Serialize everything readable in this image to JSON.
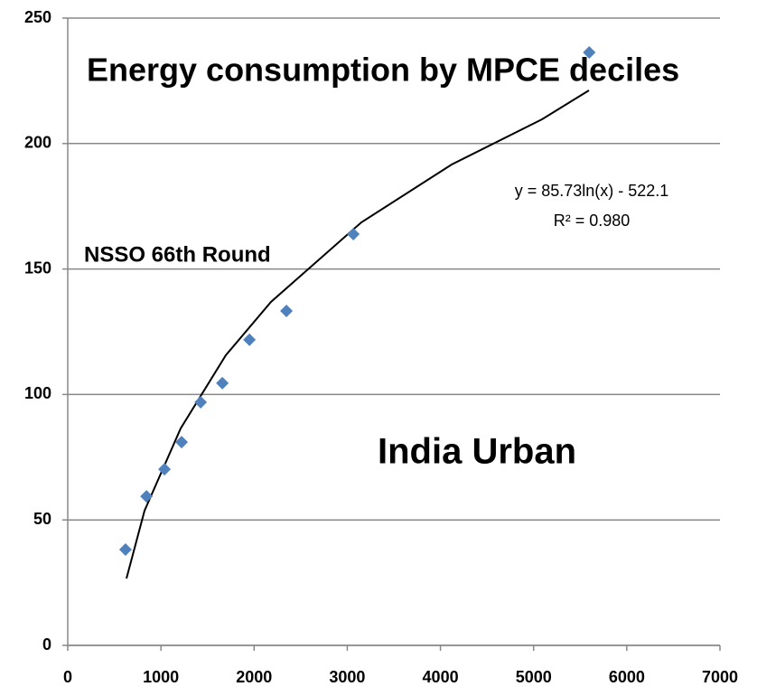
{
  "chart_data": {
    "type": "scatter",
    "title": "Energy consumption by MPCE deciles",
    "annotations": [
      "NSSO 66th Round",
      "India Urban"
    ],
    "trendline_equation": "y = 85.73ln(x) - 522.1",
    "trendline_r2": "R² = 0.980",
    "color": "#4f81bd",
    "x": [
      620,
      845,
      1038,
      1222,
      1426,
      1659,
      1950,
      2347,
      3065,
      5597
    ],
    "values": [
      38.2,
      59.4,
      70.2,
      81,
      96.9,
      104.5,
      121.8,
      133.3,
      163.9,
      236.3
    ],
    "xlim": [
      0,
      7000
    ],
    "xticks": [
      0,
      1000,
      2000,
      3000,
      4000,
      5000,
      6000,
      7000
    ],
    "ylim": [
      0,
      250
    ],
    "yticks": [
      0,
      50,
      100,
      150,
      200,
      250
    ],
    "grid": true
  }
}
